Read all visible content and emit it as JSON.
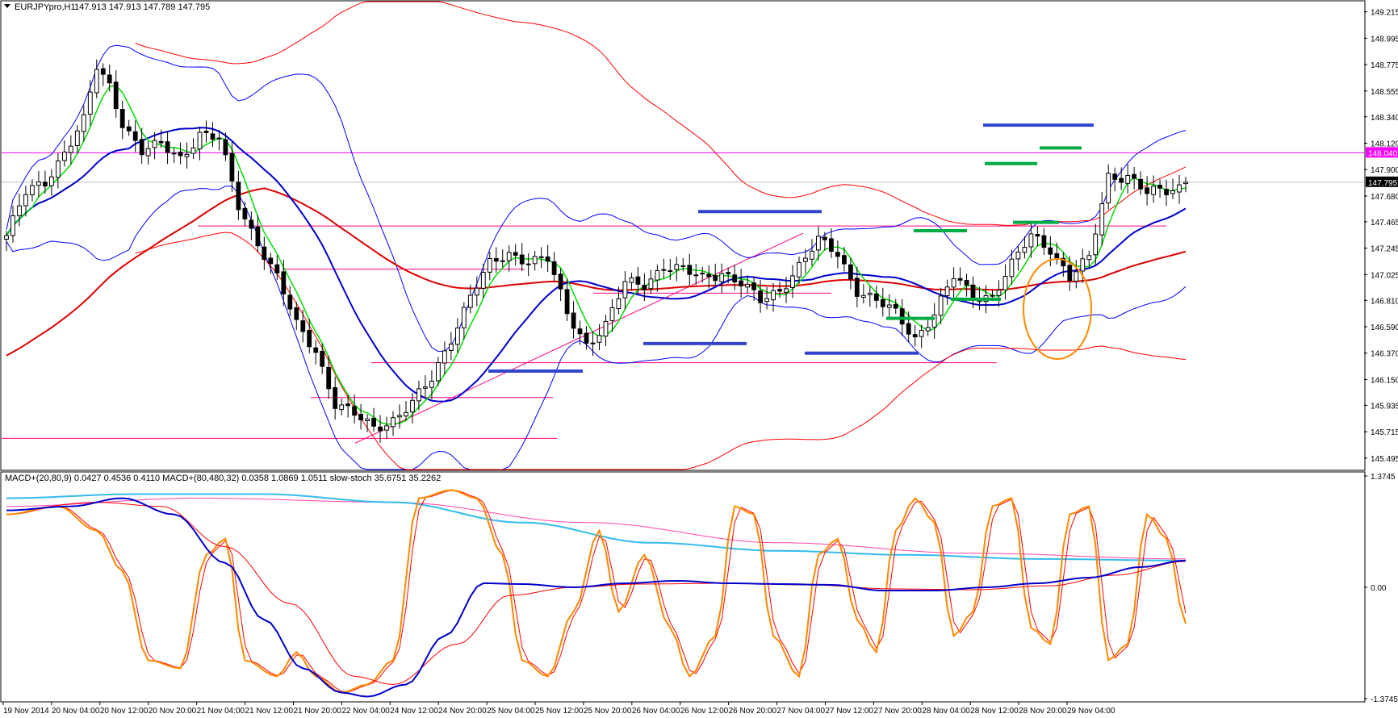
{
  "header": {
    "symbol": "EURJPYpro,H1",
    "ohlc": "147.913 147.913 147.789 147.795",
    "indicator_legend": "MACD+(20,80,9) 0.0427 0.4536 0.4110   MACD+(80,480,32) 0.0358 1.0869 1.0511   slow-stoch 35.6751 35.2262"
  },
  "colors": {
    "bullish_candle": "#ffffff",
    "bearish_candle": "#000000",
    "ema_fast": "#00dd00",
    "ema_mid": "#0000cc",
    "ema_slow": "#dd0000",
    "bands_blue": "#0000ff",
    "bands_red": "#ff0000",
    "levels": "#ff0080",
    "price_line": "#c0c0c0",
    "highlight_line": "#ff00ff",
    "support_marks": "#00aa44",
    "resistance_marks": "#3344cc",
    "stoch": "#ff8800",
    "macd_fast": "#0000cc",
    "macd_slow": "#33bbee",
    "signal": "#ff0000",
    "signal_slow": "#ff44aa",
    "circle": "#ff8800"
  },
  "chart_data": [
    {
      "type": "candlestick",
      "symbol": "EURJPYpro",
      "timeframe": "H1",
      "ylim": [
        145.4,
        149.3
      ],
      "y_ticks": [
        "149.215",
        "148.995",
        "148.775",
        "148.555",
        "148.340",
        "148.120",
        "147.900",
        "147.680",
        "147.465",
        "147.245",
        "147.025",
        "146.810",
        "146.590",
        "146.370",
        "146.150",
        "145.935",
        "145.715",
        "145.495"
      ],
      "y_tick_values": [
        149.215,
        148.995,
        148.775,
        148.555,
        148.34,
        148.12,
        147.9,
        147.68,
        147.465,
        147.245,
        147.025,
        146.81,
        146.59,
        146.37,
        146.15,
        145.935,
        145.715,
        145.495
      ],
      "current_price": "147.795",
      "current_price_value": 147.795,
      "highlight_level": "148.040",
      "highlight_level_value": 148.04,
      "x_labels": [
        "19 Nov 2014",
        "20 Nov 04:00",
        "20 Nov 12:00",
        "20 Nov 20:00",
        "21 Nov 04:00",
        "21 Nov 12:00",
        "21 Nov 20:00",
        "22 Nov 04:00",
        "24 Nov 12:00",
        "24 Nov 20:00",
        "25 Nov 04:00",
        "25 Nov 12:00",
        "25 Nov 20:00",
        "26 Nov 04:00",
        "26 Nov 12:00",
        "26 Nov 20:00",
        "27 Nov 04:00",
        "27 Nov 12:00",
        "27 Nov 20:00",
        "28 Nov 04:00",
        "28 Nov 12:00",
        "28 Nov 20:00",
        "29 Nov 04:00"
      ],
      "price_anchors": [
        [
          0,
          147.35
        ],
        [
          3,
          147.7
        ],
        [
          6,
          147.8
        ],
        [
          9,
          148.05
        ],
        [
          12,
          148.3
        ],
        [
          14,
          148.75
        ],
        [
          16,
          148.6
        ],
        [
          18,
          148.3
        ],
        [
          21,
          148.05
        ],
        [
          24,
          148.1
        ],
        [
          27,
          148.0
        ],
        [
          30,
          148.2
        ],
        [
          33,
          148.15
        ],
        [
          36,
          147.6
        ],
        [
          39,
          147.3
        ],
        [
          42,
          147.0
        ],
        [
          45,
          146.6
        ],
        [
          48,
          146.4
        ],
        [
          51,
          145.95
        ],
        [
          54,
          145.85
        ],
        [
          57,
          145.75
        ],
        [
          60,
          145.82
        ],
        [
          63,
          145.95
        ],
        [
          66,
          146.15
        ],
        [
          69,
          146.5
        ],
        [
          72,
          146.85
        ],
        [
          75,
          147.1
        ],
        [
          78,
          147.2
        ],
        [
          81,
          147.15
        ],
        [
          84,
          147.15
        ],
        [
          87,
          146.7
        ],
        [
          90,
          146.45
        ],
        [
          93,
          146.6
        ],
        [
          96,
          146.95
        ],
        [
          99,
          146.95
        ],
        [
          102,
          147.1
        ],
        [
          105,
          147.05
        ],
        [
          108,
          147.0
        ],
        [
          111,
          147.05
        ],
        [
          114,
          146.95
        ],
        [
          117,
          146.8
        ],
        [
          120,
          146.9
        ],
        [
          123,
          147.1
        ],
        [
          126,
          147.3
        ],
        [
          129,
          147.2
        ],
        [
          132,
          146.9
        ],
        [
          135,
          146.8
        ],
        [
          138,
          146.7
        ],
        [
          141,
          146.5
        ],
        [
          144,
          146.7
        ],
        [
          147,
          147.0
        ],
        [
          150,
          146.85
        ],
        [
          153,
          146.85
        ],
        [
          156,
          147.1
        ],
        [
          159,
          147.35
        ],
        [
          162,
          147.25
        ],
        [
          165,
          147.0
        ],
        [
          168,
          147.15
        ],
        [
          171,
          147.85
        ],
        [
          174,
          147.85
        ],
        [
          177,
          147.7
        ],
        [
          180,
          147.72
        ],
        [
          183,
          147.78
        ]
      ],
      "notes": "Candle values above are interpolated anchor estimates read off the axis; the page interpolates between anchors to draw 184 hourly candles."
    },
    {
      "type": "line",
      "name": "MACD+ / slow-stoch subwindow",
      "ylim": [
        -1.3745,
        1.3745
      ],
      "y_ticks": [
        "1.3745",
        "0.00",
        "-1.3745"
      ],
      "y_tick_values": [
        1.3745,
        0,
        -1.3745
      ]
    }
  ]
}
